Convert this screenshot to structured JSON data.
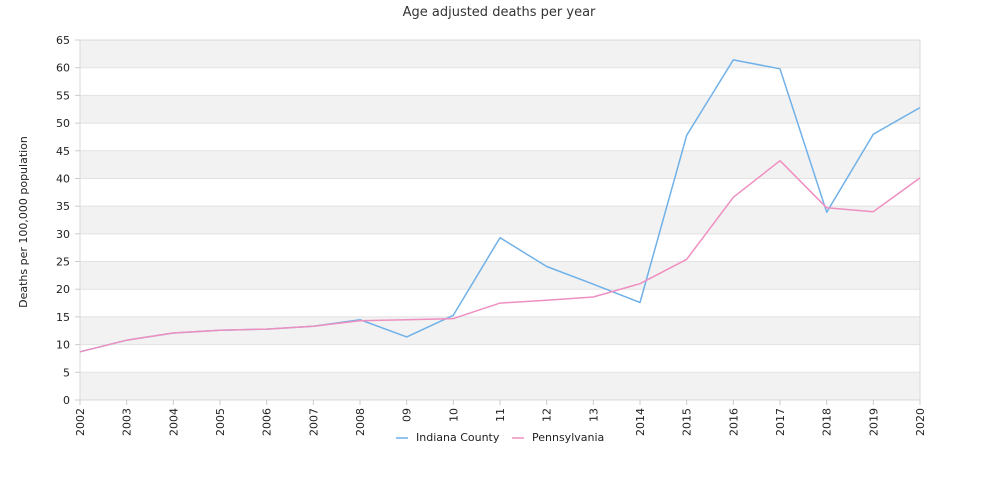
{
  "chart_data": {
    "type": "line",
    "title": "Age adjusted deaths per year",
    "xlabel": "",
    "ylabel": "Deaths per 100,000 population",
    "categories": [
      "2002",
      "2003",
      "2004",
      "2005",
      "2006",
      "2007",
      "2008",
      "09",
      "10",
      "11",
      "12",
      "13",
      "2014",
      "2015",
      "2016",
      "2017",
      "2018",
      "2019",
      "2020"
    ],
    "ylim": [
      0,
      65
    ],
    "yticks": [
      0,
      5,
      10,
      15,
      20,
      25,
      30,
      35,
      40,
      45,
      50,
      55,
      60,
      65
    ],
    "grid": "horizontal alternating bands",
    "legend_position": "bottom-center",
    "series": [
      {
        "name": "Indiana County",
        "color": "#6fb1e8",
        "values": [
          8.7,
          10.8,
          12.1,
          12.6,
          12.8,
          13.3,
          14.5,
          11.4,
          15.3,
          29.3,
          24.1,
          20.9,
          17.6,
          47.8,
          61.4,
          59.8,
          33.9,
          48.0,
          52.8
        ]
      },
      {
        "name": "Pennsylvania",
        "color": "#ef8fc0",
        "values": [
          8.7,
          10.8,
          12.1,
          12.6,
          12.8,
          13.3,
          14.3,
          14.5,
          14.7,
          17.5,
          18.0,
          18.6,
          21.0,
          25.4,
          36.6,
          43.2,
          34.7,
          34.0,
          40.1
        ]
      }
    ]
  }
}
